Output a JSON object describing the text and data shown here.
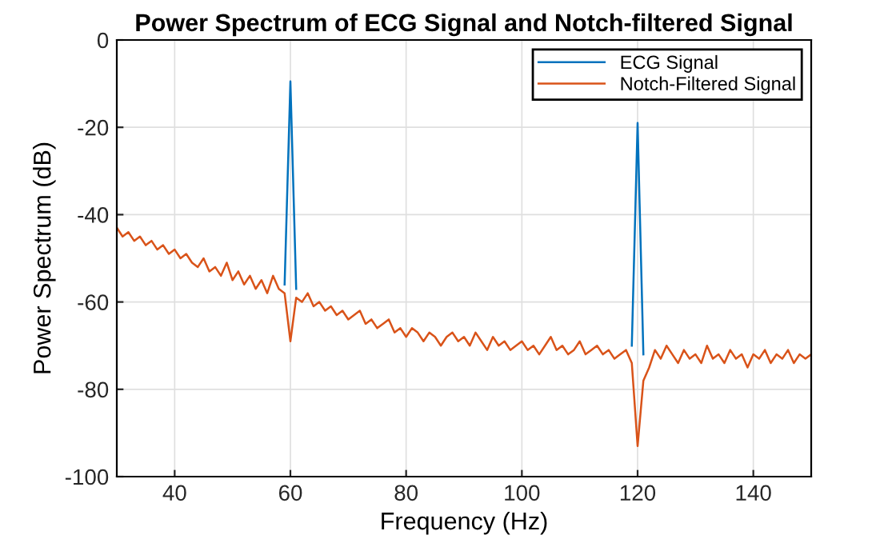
{
  "chart_data": {
    "type": "line",
    "title": "Power Spectrum of ECG Signal and Notch-filtered Signal",
    "xlabel": "Frequency (Hz)",
    "ylabel": "Power Spectrum (dB)",
    "x": [
      30,
      31,
      32,
      33,
      34,
      35,
      36,
      37,
      38,
      39,
      40,
      41,
      42,
      43,
      44,
      45,
      46,
      47,
      48,
      49,
      50,
      51,
      52,
      53,
      54,
      55,
      56,
      57,
      58,
      59,
      60,
      61,
      62,
      63,
      64,
      65,
      66,
      67,
      68,
      69,
      70,
      71,
      72,
      73,
      74,
      75,
      76,
      77,
      78,
      79,
      80,
      81,
      82,
      83,
      84,
      85,
      86,
      87,
      88,
      89,
      90,
      91,
      92,
      93,
      94,
      95,
      96,
      97,
      98,
      99,
      100,
      101,
      102,
      103,
      104,
      105,
      106,
      107,
      108,
      109,
      110,
      111,
      112,
      113,
      114,
      115,
      116,
      117,
      118,
      119,
      120,
      121,
      122,
      123,
      124,
      125,
      126,
      127,
      128,
      129,
      130,
      131,
      132,
      133,
      134,
      135,
      136,
      137,
      138,
      139,
      140,
      141,
      142,
      143,
      144,
      145,
      146,
      147,
      148,
      149,
      150
    ],
    "series": [
      {
        "name": "ECG Signal",
        "color": "#0072bd",
        "x": [
          59,
          60,
          61,
          90,
          119,
          120,
          121
        ],
        "values": [
          -56,
          -9.5,
          -57,
          null,
          -70,
          -19,
          -72
        ]
      },
      {
        "name": "Notch-Filtered Signal",
        "color": "#d95319",
        "values": [
          -43,
          -45,
          -44,
          -46,
          -45,
          -47,
          -46,
          -48,
          -47,
          -49,
          -48,
          -50,
          -49,
          -51,
          -52,
          -50,
          -53,
          -52,
          -54,
          -51,
          -55,
          -53,
          -56,
          -54,
          -57,
          -55,
          -58,
          -54,
          -57,
          -58,
          -69,
          -59,
          -60,
          -58,
          -61,
          -60,
          -62,
          -61,
          -63,
          -62,
          -64,
          -63,
          -62,
          -65,
          -64,
          -66,
          -65,
          -64,
          -67,
          -66,
          -68,
          -66,
          -67,
          -69,
          -67,
          -68,
          -70,
          -68,
          -67,
          -69,
          -68,
          -70,
          -67,
          -69,
          -71,
          -68,
          -70,
          -69,
          -71,
          -70,
          -69,
          -71,
          -70,
          -72,
          -70,
          -68,
          -71,
          -70,
          -72,
          -71,
          -69,
          -72,
          -71,
          -70,
          -72,
          -71,
          -73,
          -72,
          -71,
          -74,
          -93,
          -78,
          -75,
          -71,
          -73,
          -70,
          -72,
          -74,
          -71,
          -73,
          -72,
          -74,
          -70,
          -73,
          -72,
          -74,
          -71,
          -73,
          -72,
          -75,
          -72,
          -73,
          -71,
          -74,
          -72,
          -73,
          -71,
          -74,
          -72,
          -73,
          -72
        ]
      }
    ],
    "xlim": [
      30,
      150
    ],
    "xticks": [
      40,
      60,
      80,
      100,
      120,
      140
    ],
    "ylim": [
      -100,
      0
    ],
    "yticks": [
      -100,
      -80,
      -60,
      -40,
      -20,
      0
    ],
    "grid": true,
    "legend": "top right"
  }
}
